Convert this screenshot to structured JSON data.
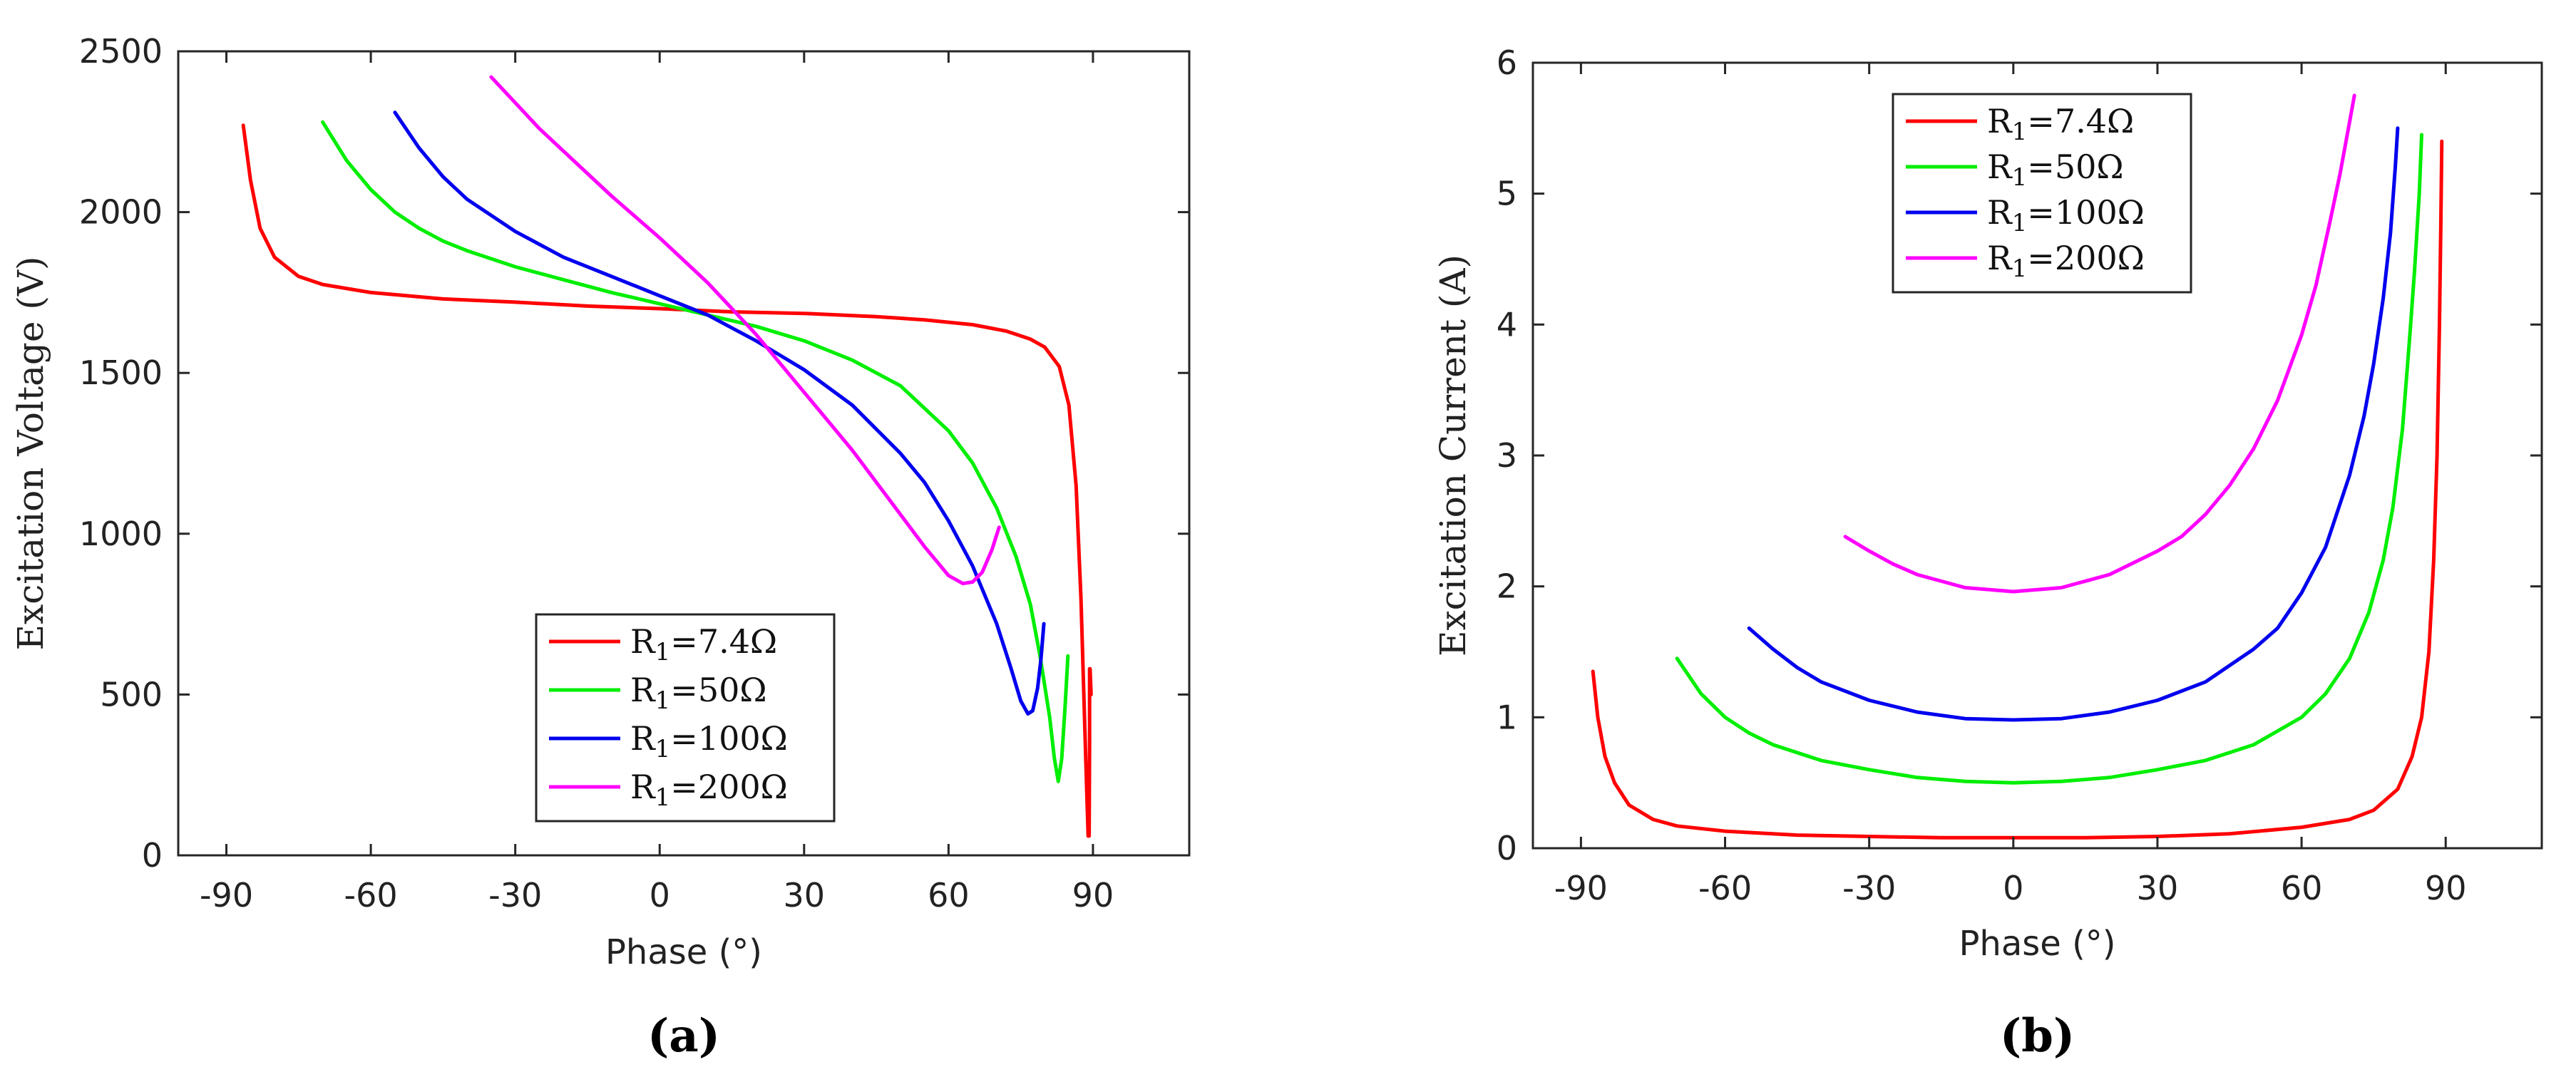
{
  "chart_data": [
    {
      "type": "line",
      "panel_label": "(a)",
      "xlabel": "Phase (°)",
      "ylabel": "Excitation Voltage (V)",
      "xlim": [
        -100,
        110
      ],
      "ylim": [
        0,
        2500
      ],
      "xticks": [
        -90,
        -60,
        -30,
        0,
        30,
        60,
        90
      ],
      "yticks": [
        0,
        500,
        1000,
        1500,
        2000,
        2500
      ],
      "xtick_labels": [
        "-90",
        "-60",
        "-30",
        "0",
        "30",
        "60",
        "90"
      ],
      "ytick_labels": [
        "0",
        "500",
        "1000",
        "1500",
        "2000",
        "2500"
      ],
      "legend_position": "bottom-center",
      "series": [
        {
          "name": "R1=7.4Ω",
          "base": "R",
          "sub": "1",
          "rest": "=7.4Ω",
          "color": "#ff0000",
          "x": [
            -86.5,
            -85,
            -83,
            -80,
            -75,
            -70,
            -60,
            -45,
            -30,
            -15,
            0,
            15,
            30,
            45,
            55,
            65,
            72,
            77,
            80,
            83,
            85,
            86.5,
            87.5,
            88.2,
            88.7,
            89.0,
            89.2,
            89.3,
            89.3,
            89.4,
            89.6
          ],
          "y": [
            2270,
            2100,
            1950,
            1860,
            1800,
            1775,
            1750,
            1730,
            1720,
            1708,
            1700,
            1690,
            1685,
            1675,
            1665,
            1650,
            1630,
            1605,
            1580,
            1520,
            1400,
            1150,
            800,
            450,
            200,
            60,
            60,
            350,
            580,
            580,
            500
          ]
        },
        {
          "name": "R1=50Ω",
          "base": "R",
          "sub": "1",
          "rest": "=50Ω",
          "color": "#00ee00",
          "x": [
            -70,
            -65,
            -60,
            -55,
            -50,
            -45,
            -40,
            -30,
            -20,
            -10,
            0,
            10,
            20,
            30,
            40,
            50,
            60,
            65,
            70,
            74,
            77,
            79,
            81,
            82,
            82.8,
            83.5,
            84.2,
            84.8
          ],
          "y": [
            2280,
            2160,
            2070,
            2000,
            1950,
            1910,
            1880,
            1830,
            1790,
            1750,
            1715,
            1680,
            1645,
            1600,
            1540,
            1460,
            1320,
            1220,
            1080,
            930,
            780,
            620,
            430,
            300,
            230,
            300,
            460,
            620
          ]
        },
        {
          "name": "R1=100Ω",
          "base": "R",
          "sub": "1",
          "rest": "=100Ω",
          "color": "#0000ee",
          "x": [
            -55,
            -50,
            -45,
            -40,
            -30,
            -20,
            -10,
            0,
            10,
            20,
            30,
            40,
            50,
            55,
            60,
            65,
            70,
            73,
            75,
            76.5,
            77.5,
            78.5,
            79.2,
            79.8
          ],
          "y": [
            2310,
            2200,
            2110,
            2040,
            1940,
            1860,
            1800,
            1740,
            1680,
            1600,
            1510,
            1400,
            1250,
            1160,
            1040,
            900,
            720,
            580,
            480,
            440,
            450,
            520,
            610,
            720
          ]
        },
        {
          "name": "R1=200Ω",
          "base": "R",
          "sub": "1",
          "rest": "=200Ω",
          "color": "#ff00ff",
          "x": [
            -35,
            -30,
            -25,
            -20,
            -10,
            0,
            10,
            20,
            30,
            40,
            50,
            55,
            60,
            63,
            65,
            67,
            69,
            70.5
          ],
          "y": [
            2420,
            2340,
            2260,
            2190,
            2050,
            1920,
            1780,
            1620,
            1440,
            1260,
            1060,
            960,
            870,
            845,
            850,
            880,
            950,
            1020
          ]
        }
      ]
    },
    {
      "type": "line",
      "panel_label": "(b)",
      "xlabel": "Phase (°)",
      "ylabel": "Excitation Current (A)",
      "xlim": [
        -100,
        110
      ],
      "ylim": [
        0,
        6
      ],
      "xticks": [
        -90,
        -60,
        -30,
        0,
        30,
        60,
        90
      ],
      "yticks": [
        0,
        1,
        2,
        3,
        4,
        5,
        6
      ],
      "xtick_labels": [
        "-90",
        "-60",
        "-30",
        "0",
        "30",
        "60",
        "90"
      ],
      "ytick_labels": [
        "0",
        "1",
        "2",
        "3",
        "4",
        "5",
        "6"
      ],
      "legend_position": "top-center",
      "series": [
        {
          "name": "R1=7.4Ω",
          "base": "R",
          "sub": "1",
          "rest": "=7.4Ω",
          "color": "#ff0000",
          "x": [
            -87.5,
            -86.5,
            -85,
            -83,
            -80,
            -75,
            -70,
            -60,
            -45,
            -30,
            -15,
            0,
            15,
            30,
            45,
            60,
            70,
            75,
            80,
            83,
            85,
            86.5,
            87.5,
            88.2,
            88.7,
            89.0,
            89.2
          ],
          "y": [
            1.35,
            1.0,
            0.7,
            0.5,
            0.33,
            0.22,
            0.17,
            0.13,
            0.1,
            0.09,
            0.08,
            0.08,
            0.08,
            0.09,
            0.11,
            0.16,
            0.22,
            0.29,
            0.45,
            0.7,
            1.0,
            1.5,
            2.2,
            3.0,
            4.0,
            4.8,
            5.4
          ]
        },
        {
          "name": "R1=50Ω",
          "base": "R",
          "sub": "1",
          "rest": "=50Ω",
          "color": "#00ee00",
          "x": [
            -70,
            -65,
            -60,
            -55,
            -50,
            -40,
            -30,
            -20,
            -10,
            0,
            10,
            20,
            30,
            40,
            50,
            60,
            65,
            70,
            74,
            77,
            79,
            81,
            82.5,
            83.5,
            84.5,
            85
          ],
          "y": [
            1.45,
            1.18,
            1.0,
            0.88,
            0.79,
            0.67,
            0.6,
            0.54,
            0.51,
            0.5,
            0.51,
            0.54,
            0.6,
            0.67,
            0.79,
            1.0,
            1.18,
            1.45,
            1.8,
            2.2,
            2.6,
            3.2,
            3.9,
            4.4,
            5.0,
            5.45
          ]
        },
        {
          "name": "R1=100Ω",
          "base": "R",
          "sub": "1",
          "rest": "=100Ω",
          "color": "#0000ee",
          "x": [
            -55,
            -50,
            -45,
            -40,
            -30,
            -20,
            -10,
            0,
            10,
            20,
            30,
            40,
            50,
            55,
            60,
            65,
            70,
            73,
            75,
            77,
            78.5,
            79.5,
            80
          ],
          "y": [
            1.68,
            1.52,
            1.38,
            1.27,
            1.13,
            1.04,
            0.99,
            0.98,
            0.99,
            1.04,
            1.13,
            1.27,
            1.52,
            1.68,
            1.95,
            2.3,
            2.85,
            3.3,
            3.7,
            4.2,
            4.7,
            5.2,
            5.5
          ]
        },
        {
          "name": "R1=200Ω",
          "base": "R",
          "sub": "1",
          "rest": "=200Ω",
          "color": "#ff00ff",
          "x": [
            -35,
            -30,
            -25,
            -20,
            -10,
            0,
            10,
            20,
            30,
            35,
            40,
            45,
            50,
            55,
            60,
            63,
            66,
            68,
            70,
            71
          ],
          "y": [
            2.38,
            2.27,
            2.17,
            2.09,
            1.99,
            1.96,
            1.99,
            2.09,
            2.27,
            2.38,
            2.55,
            2.77,
            3.05,
            3.42,
            3.92,
            4.3,
            4.8,
            5.15,
            5.55,
            5.75
          ]
        }
      ]
    }
  ]
}
